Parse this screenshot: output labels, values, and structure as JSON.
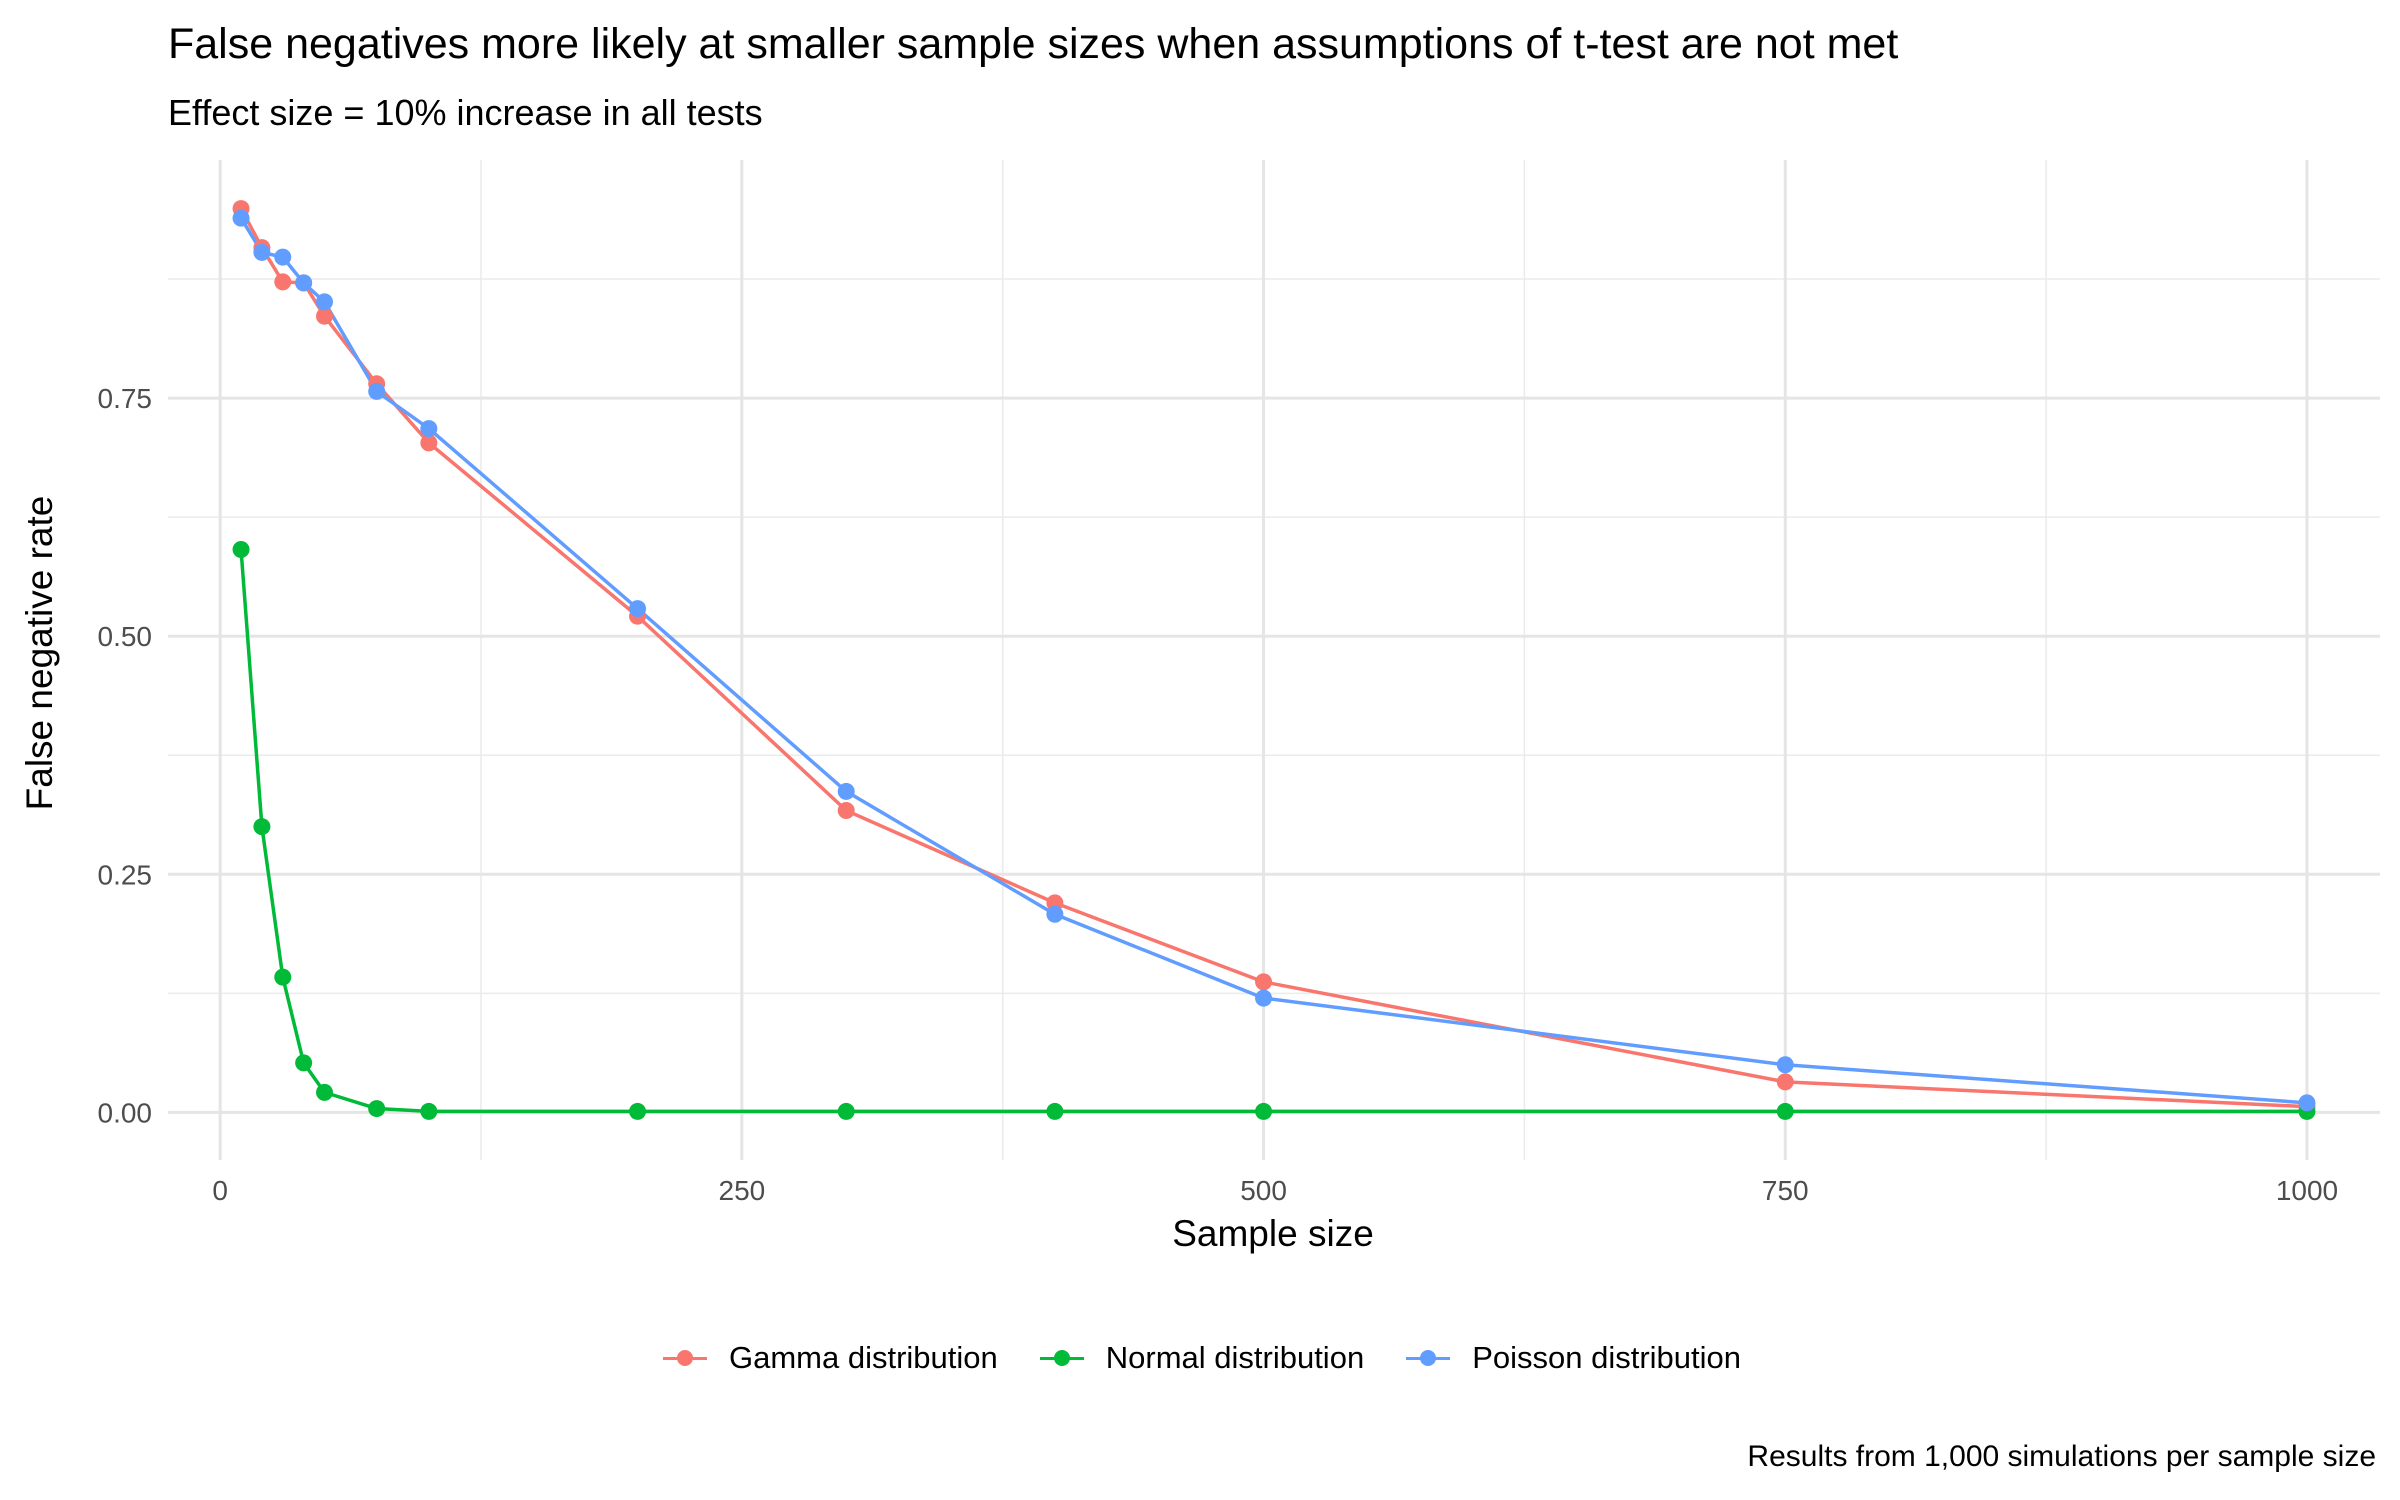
{
  "chart_data": {
    "type": "line",
    "title": "False negatives more likely at smaller sample sizes when assumptions of t-test are not met",
    "subtitle": "Effect size = 10% increase in all tests",
    "caption": "Results from 1,000 simulations per sample size",
    "xlabel": "Sample size",
    "ylabel": "False negative rate",
    "x_ticks": [
      "0",
      "250",
      "500",
      "750",
      "1000"
    ],
    "y_ticks": [
      "0.00",
      "0.25",
      "0.50",
      "0.75"
    ],
    "xlim": [
      -25,
      1035
    ],
    "ylim": [
      -0.05,
      1.0
    ],
    "grid": true,
    "legend_position": "bottom",
    "x": [
      10,
      20,
      30,
      40,
      50,
      75,
      100,
      200,
      300,
      400,
      500,
      750,
      1000
    ],
    "series": [
      {
        "name": "Gamma distribution",
        "color": "#F8766D",
        "values": [
          0.949,
          0.908,
          0.872,
          0.871,
          0.836,
          0.765,
          0.703,
          0.521,
          0.317,
          0.22,
          0.137,
          0.032,
          0.006
        ]
      },
      {
        "name": "Normal distribution",
        "color": "#00BA38",
        "values": [
          0.591,
          0.3,
          0.142,
          0.052,
          0.021,
          0.004,
          0.001,
          0.001,
          0.001,
          0.001,
          0.001,
          0.001,
          0.001
        ]
      },
      {
        "name": "Poisson distribution",
        "color": "#619CFF",
        "values": [
          0.939,
          0.903,
          0.898,
          0.871,
          0.851,
          0.757,
          0.718,
          0.529,
          0.337,
          0.208,
          0.12,
          0.05,
          0.01
        ]
      }
    ]
  }
}
